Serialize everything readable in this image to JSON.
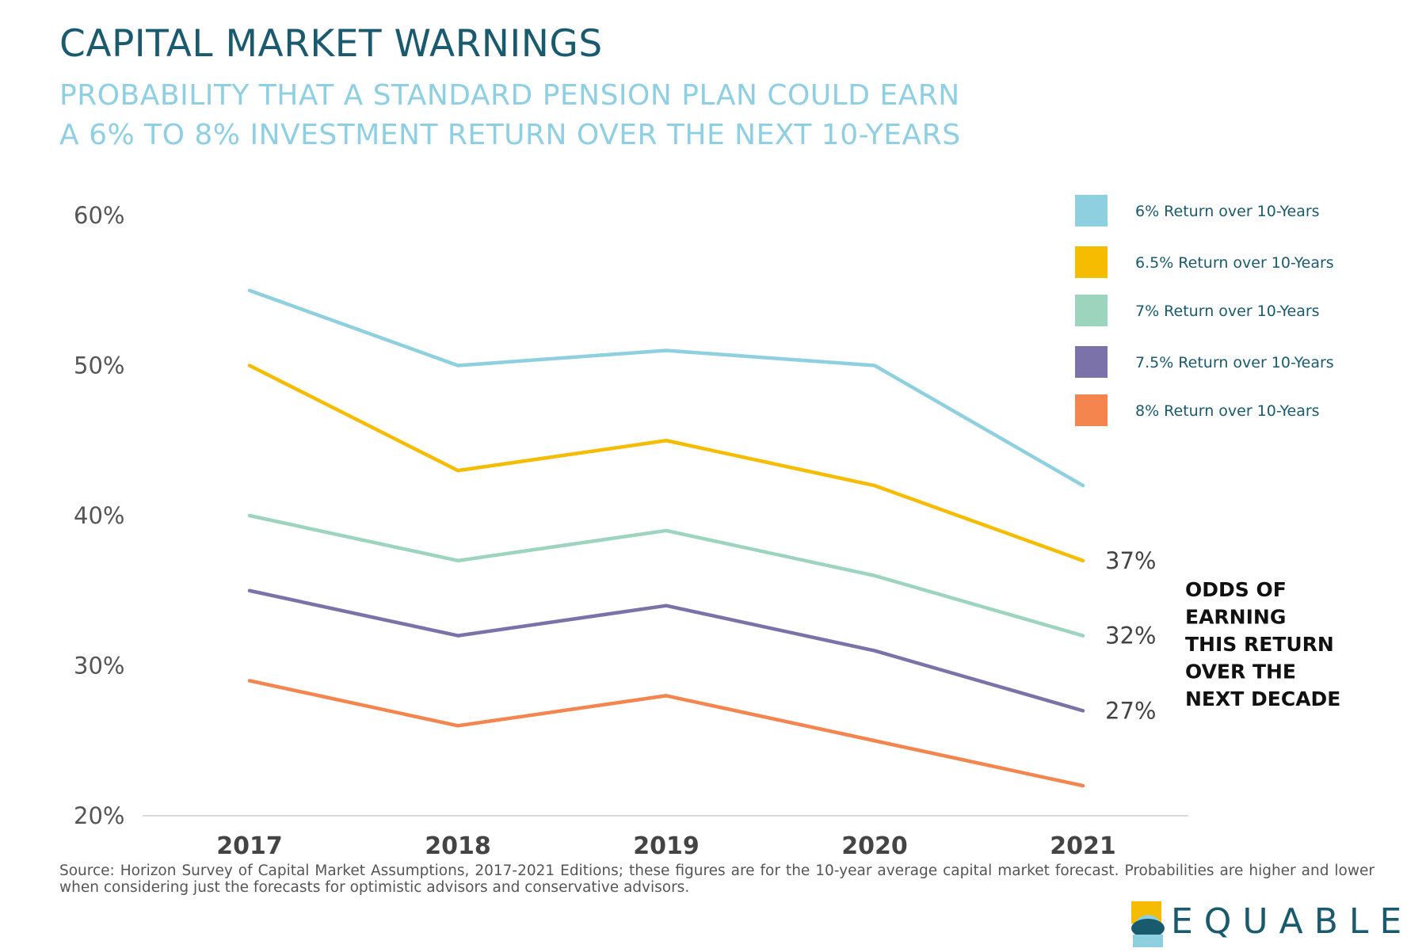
{
  "header": {
    "title": "CAPITAL MARKET WARNINGS",
    "subtitle_line1": "PROBABILITY THAT A STANDARD PENSION PLAN COULD EARN",
    "subtitle_line2": "A 6% TO 8% INVESTMENT RETURN OVER THE NEXT 10-YEARS"
  },
  "chart_data": {
    "type": "line",
    "title": "CAPITAL MARKET WARNINGS",
    "x": [
      "2017",
      "2018",
      "2019",
      "2020",
      "2021"
    ],
    "ylim": [
      20,
      60
    ],
    "yticks": [
      "60%",
      "50%",
      "40%",
      "30%",
      "20%"
    ],
    "grid": false,
    "legend_position": "top-right",
    "series": [
      {
        "name": "6% Return over 10-Years",
        "color": "#8ecfe0",
        "values": [
          55,
          50,
          51,
          50,
          42
        ]
      },
      {
        "name": "6.5% Return over 10-Years",
        "color": "#f5bc00",
        "values": [
          50,
          43,
          45,
          42,
          37
        ]
      },
      {
        "name": "7% Return over 10-Years",
        "color": "#9dd4be",
        "values": [
          40,
          37,
          39,
          36,
          32
        ]
      },
      {
        "name": "7.5% Return over 10-Years",
        "color": "#7a72a8",
        "values": [
          35,
          32,
          34,
          31,
          27
        ]
      },
      {
        "name": "8% Return over 10-Years",
        "color": "#f5854f",
        "values": [
          29,
          26,
          28,
          25,
          22
        ]
      }
    ],
    "end_labels": [
      {
        "series": 1,
        "text": "37%"
      },
      {
        "series": 2,
        "text": "32%"
      },
      {
        "series": 3,
        "text": "27%"
      }
    ],
    "annotation": [
      "ODDS OF",
      "EARNING",
      "THIS RETURN",
      "OVER THE",
      "NEXT DECADE"
    ]
  },
  "footer": {
    "source": "Source: Horizon Survey of Capital Market Assumptions, 2017-2021 Editions; these figures are for the 10-year average capital market forecast. Probabilities are higher and lower when considering just the forecasts for optimistic advisors and conservative advisors.",
    "logo_text": "EQUABLE"
  },
  "colors": {
    "title": "#1a5a6e",
    "subtitle": "#8fcfe3",
    "axis_text": "#555555"
  }
}
